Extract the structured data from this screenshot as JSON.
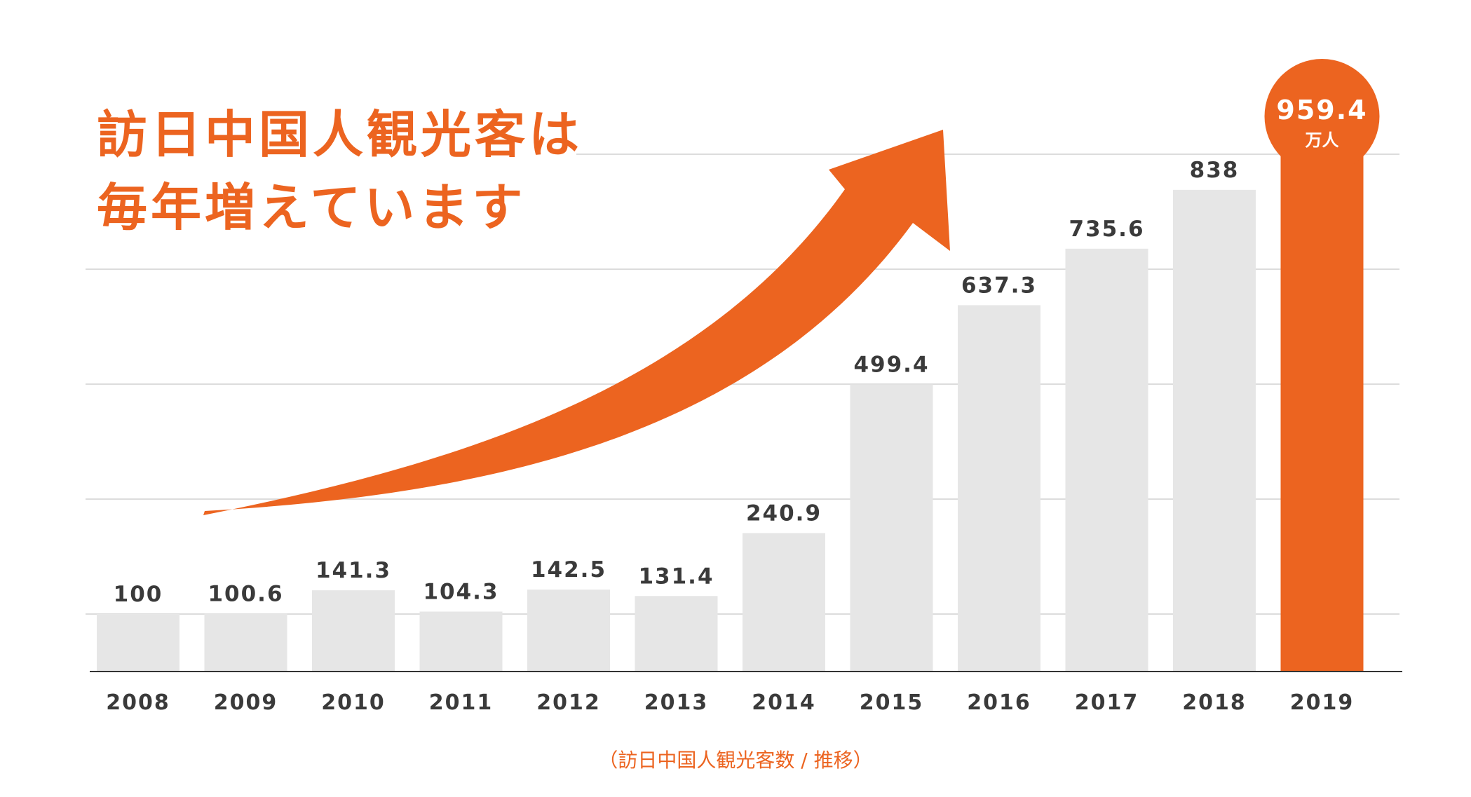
{
  "headline": {
    "line1": "訪日中国人観光客は",
    "line2": "毎年増えています"
  },
  "caption": "（訪日中国人観光客数 / 推移）",
  "colors": {
    "accent": "#ec6420",
    "bar": "#e6e6e6",
    "label": "#3a3a3a",
    "grid": "#dcdcdc",
    "axis": "#333333"
  },
  "chart_data": {
    "type": "bar",
    "categories": [
      "2008",
      "2009",
      "2010",
      "2011",
      "2012",
      "2013",
      "2014",
      "2015",
      "2016",
      "2017",
      "2018",
      "2019"
    ],
    "values": [
      100,
      100.6,
      141.3,
      104.3,
      142.5,
      131.4,
      240.9,
      499.4,
      637.3,
      735.6,
      838,
      959.4
    ],
    "value_labels": [
      "100",
      "100.6",
      "141.3",
      "104.3",
      "142.5",
      "131.4",
      "240.9",
      "499.4",
      "637.3",
      "735.6",
      "838",
      "959.4"
    ],
    "highlight_index": 11,
    "highlight_unit": "万人",
    "ylim": [
      0,
      1000
    ],
    "grid": true,
    "title": "",
    "xlabel": "",
    "ylabel": ""
  }
}
